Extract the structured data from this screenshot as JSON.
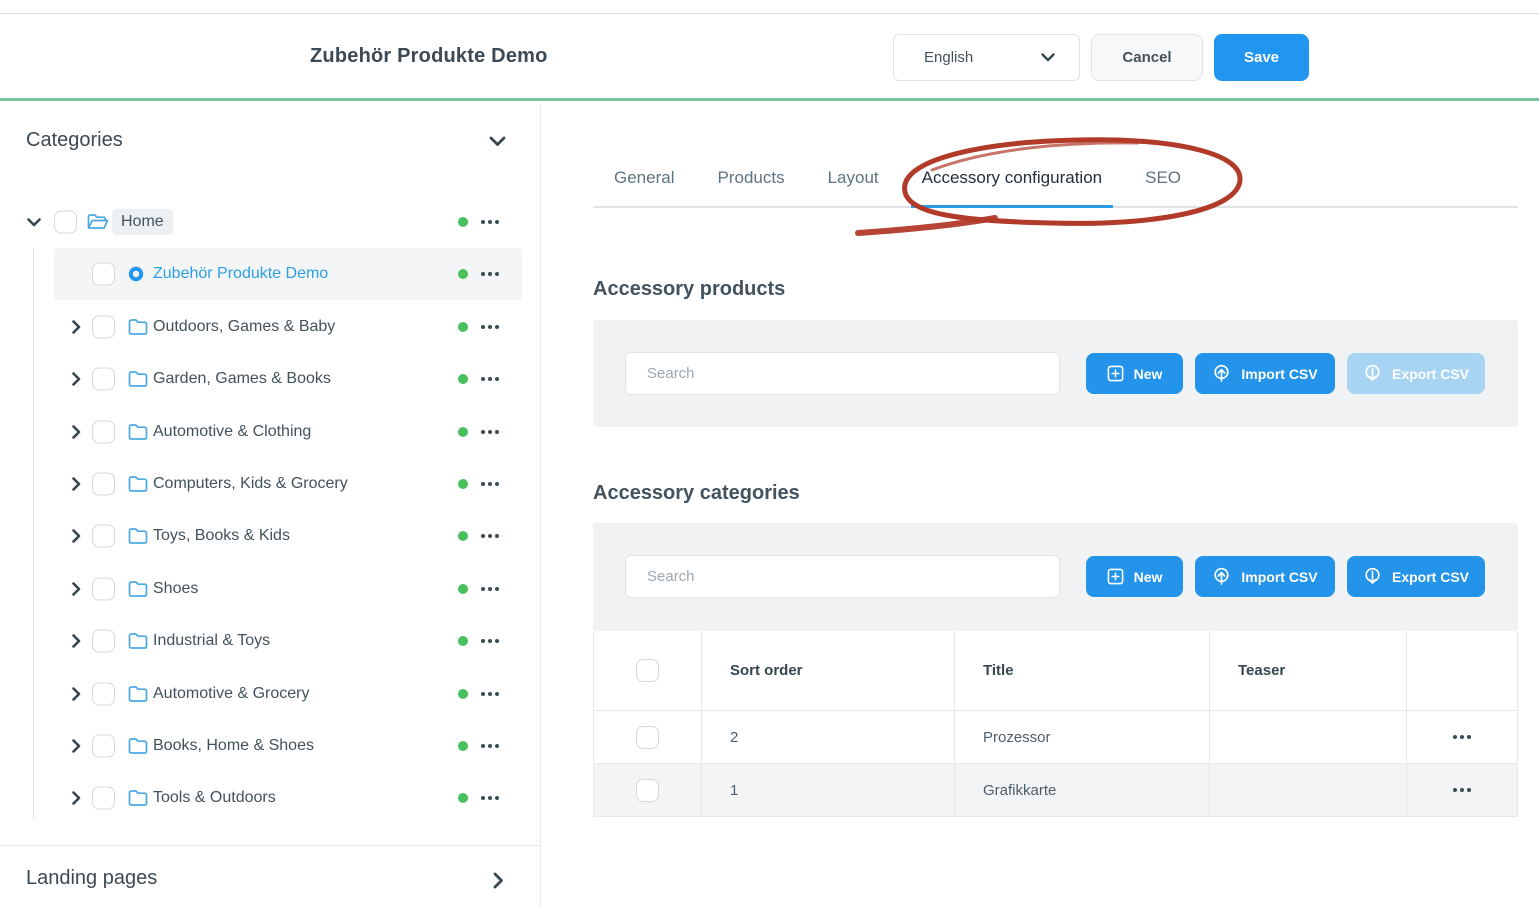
{
  "colors": {
    "accent_blue": "#2196f0",
    "disabled_blue": "#a8d4f4",
    "selected_text_blue": "#2e9fe1",
    "topbar_green": "#76c39d",
    "status_dot_green": "#48c15c",
    "annotation_red": "#b13a29",
    "panel_gray": "#f0f2f4"
  },
  "header": {
    "title": "Zubehör Produkte Demo",
    "language": "English",
    "cancel_label": "Cancel",
    "save_label": "Save"
  },
  "sidebar": {
    "categories_title": "Categories",
    "landing_pages_title": "Landing pages",
    "tree": [
      {
        "label": "Home",
        "level": 0,
        "icon": "folder-open",
        "expander": "expanded",
        "label_highlight": true,
        "selected": false
      },
      {
        "label": "Zubehör Produkte Demo",
        "level": 1,
        "icon": "ring",
        "expander": "none",
        "label_highlight": false,
        "selected": true
      },
      {
        "label": "Outdoors, Games & Baby",
        "level": 1,
        "icon": "folder",
        "expander": "collapsed",
        "label_highlight": false,
        "selected": false
      },
      {
        "label": "Garden, Games & Books",
        "level": 1,
        "icon": "folder",
        "expander": "collapsed",
        "label_highlight": false,
        "selected": false
      },
      {
        "label": "Automotive & Clothing",
        "level": 1,
        "icon": "folder",
        "expander": "collapsed",
        "label_highlight": false,
        "selected": false
      },
      {
        "label": "Computers, Kids & Grocery",
        "level": 1,
        "icon": "folder",
        "expander": "collapsed",
        "label_highlight": false,
        "selected": false
      },
      {
        "label": "Toys, Books & Kids",
        "level": 1,
        "icon": "folder",
        "expander": "collapsed",
        "label_highlight": false,
        "selected": false
      },
      {
        "label": "Shoes",
        "level": 1,
        "icon": "folder",
        "expander": "collapsed",
        "label_highlight": false,
        "selected": false
      },
      {
        "label": "Industrial & Toys",
        "level": 1,
        "icon": "folder",
        "expander": "collapsed",
        "label_highlight": false,
        "selected": false
      },
      {
        "label": "Automotive & Grocery",
        "level": 1,
        "icon": "folder",
        "expander": "collapsed",
        "label_highlight": false,
        "selected": false
      },
      {
        "label": "Books, Home & Shoes",
        "level": 1,
        "icon": "folder",
        "expander": "collapsed",
        "label_highlight": false,
        "selected": false
      },
      {
        "label": "Tools & Outdoors",
        "level": 1,
        "icon": "folder",
        "expander": "collapsed",
        "label_highlight": false,
        "selected": false
      }
    ]
  },
  "main": {
    "tabs": [
      {
        "label": "General",
        "active": false
      },
      {
        "label": "Products",
        "active": false
      },
      {
        "label": "Layout",
        "active": false
      },
      {
        "label": "Accessory configuration",
        "active": true
      },
      {
        "label": "SEO",
        "active": false
      }
    ],
    "annotation": {
      "type": "hand-drawn-circle",
      "target": "Accessory configuration tab",
      "color": "#b13a29"
    },
    "sections": [
      {
        "heading": "Accessory products",
        "search_placeholder": "Search",
        "buttons": {
          "new": "New",
          "import": "Import CSV",
          "export": "Export CSV"
        },
        "export_enabled": false
      },
      {
        "heading": "Accessory categories",
        "search_placeholder": "Search",
        "buttons": {
          "new": "New",
          "import": "Import CSV",
          "export": "Export CSV"
        },
        "export_enabled": true,
        "table": {
          "columns": [
            "Sort order",
            "Title",
            "Teaser"
          ],
          "rows": [
            {
              "sort_order": "2",
              "title": "Prozessor",
              "teaser": ""
            },
            {
              "sort_order": "1",
              "title": "Grafikkarte",
              "teaser": ""
            }
          ]
        }
      }
    ]
  }
}
